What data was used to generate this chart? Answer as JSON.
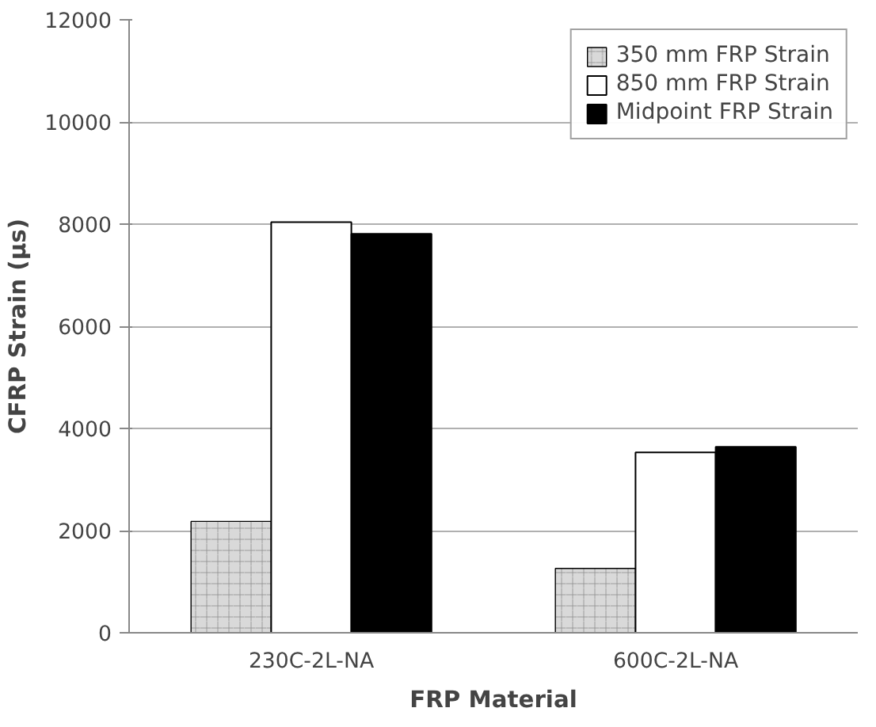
{
  "chart_data": {
    "type": "bar",
    "xlabel": "FRP Material",
    "ylabel": "CFRP Strain (µs)",
    "categories": [
      "230C-2L-NA",
      "600C-2L-NA"
    ],
    "series": [
      {
        "name": "350 mm FRP Strain",
        "color": "#d9d9d9",
        "values": [
          2180,
          1260
        ]
      },
      {
        "name": "850 mm FRP Strain",
        "color": "#ffffff",
        "values": [
          8040,
          3530
        ]
      },
      {
        "name": "Midpoint FRP Strain",
        "color": "#000000",
        "values": [
          7810,
          3640
        ]
      }
    ],
    "ylim": [
      0,
      12000
    ],
    "yticks": [
      0,
      2000,
      4000,
      6000,
      8000,
      10000,
      12000
    ],
    "grid": "y",
    "legend": "top right"
  }
}
